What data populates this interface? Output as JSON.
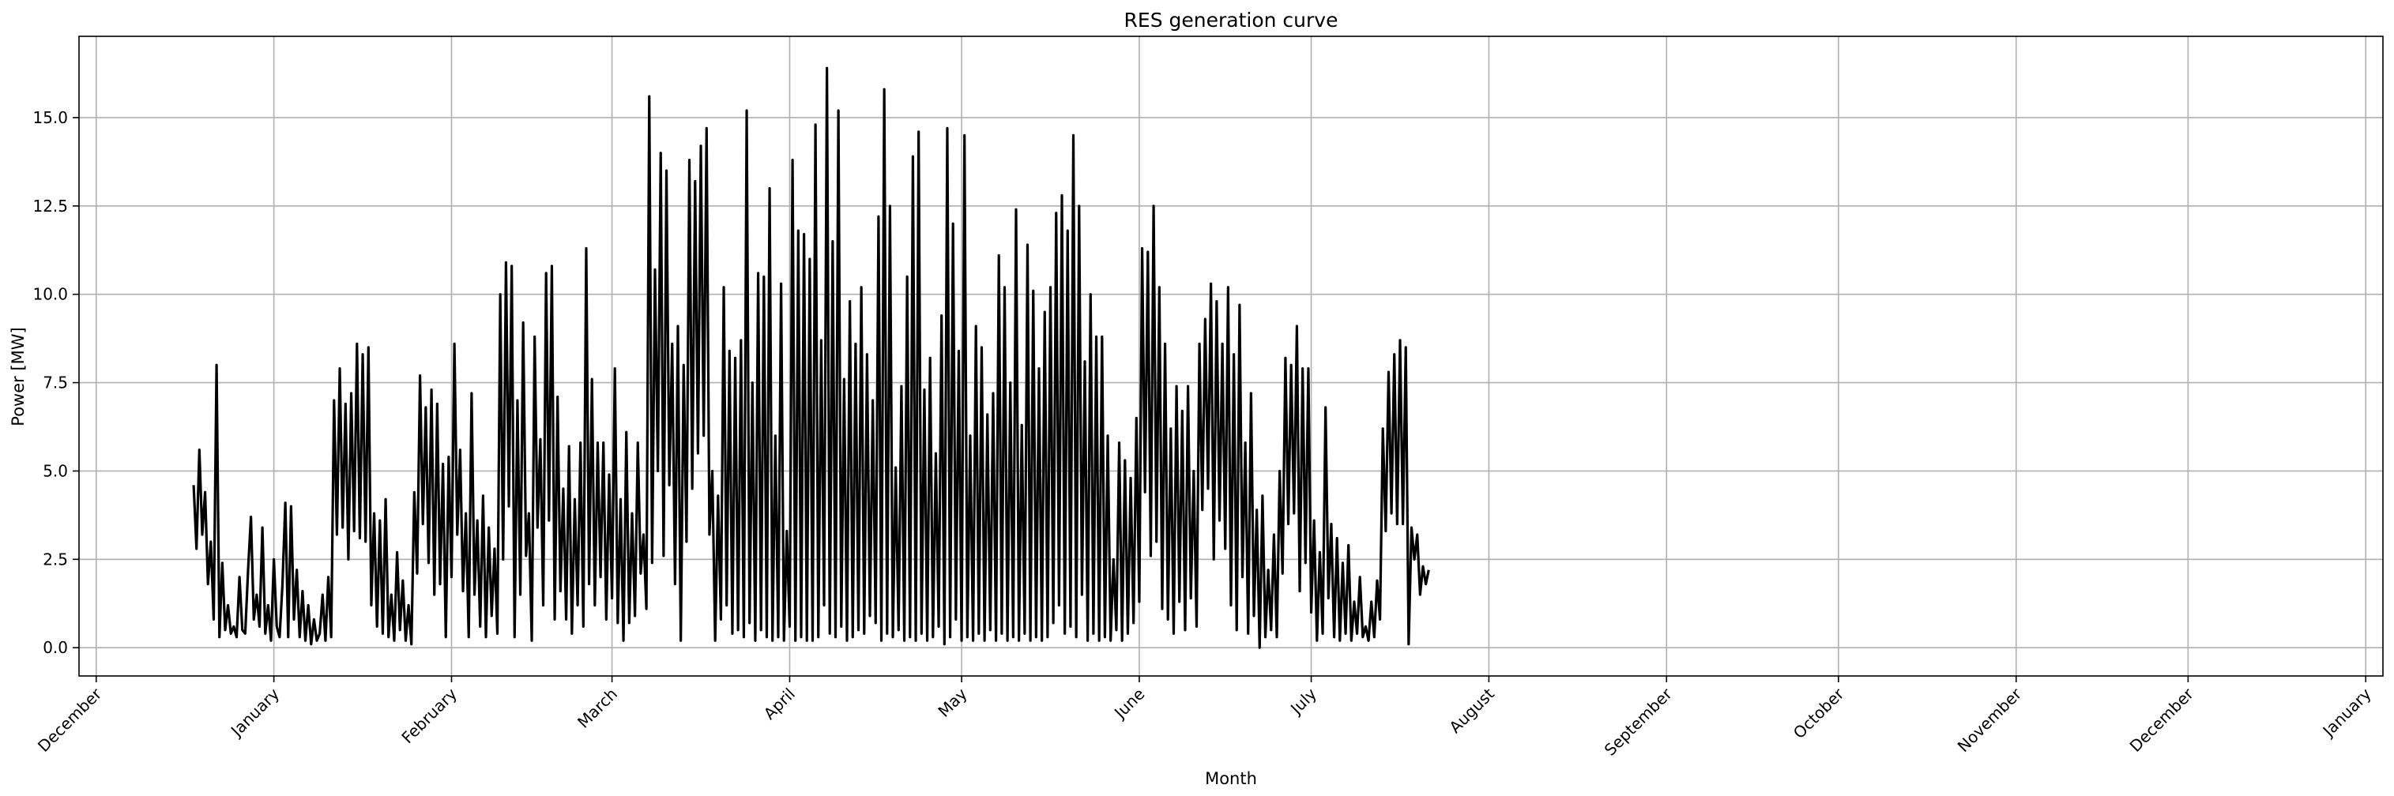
{
  "chart_data": {
    "type": "line",
    "title": "RES generation curve",
    "xlabel": "Month",
    "ylabel": "Power [MW]",
    "x_axis_type": "date",
    "xlim": [
      "2021-11-28",
      "2023-01-04"
    ],
    "ylim": [
      -0.8,
      17.3
    ],
    "grid": true,
    "line_color": "#000000",
    "x_ticks": [
      {
        "date": "2021-12-01",
        "label": "December"
      },
      {
        "date": "2022-01-01",
        "label": "January"
      },
      {
        "date": "2022-02-01",
        "label": "February"
      },
      {
        "date": "2022-03-01",
        "label": "March"
      },
      {
        "date": "2022-04-01",
        "label": "April"
      },
      {
        "date": "2022-05-01",
        "label": "May"
      },
      {
        "date": "2022-06-01",
        "label": "June"
      },
      {
        "date": "2022-07-01",
        "label": "July"
      },
      {
        "date": "2022-08-01",
        "label": "August"
      },
      {
        "date": "2022-09-01",
        "label": "September"
      },
      {
        "date": "2022-10-01",
        "label": "October"
      },
      {
        "date": "2022-11-01",
        "label": "November"
      },
      {
        "date": "2022-12-01",
        "label": "December"
      },
      {
        "date": "2023-01-01",
        "label": "January"
      }
    ],
    "y_ticks": [
      {
        "value": 0,
        "label": "0.0"
      },
      {
        "value": 2.5,
        "label": "2.5"
      },
      {
        "value": 5,
        "label": "5.0"
      },
      {
        "value": 7.5,
        "label": "7.5"
      },
      {
        "value": 10,
        "label": "10.0"
      },
      {
        "value": 12.5,
        "label": "12.5"
      },
      {
        "value": 15,
        "label": "15.0"
      }
    ],
    "series": [
      {
        "start": "2021-12-18",
        "step_hours": 12,
        "values": [
          4.6,
          2.8,
          5.6,
          3.2,
          4.4,
          1.8,
          3.0,
          0.8,
          8.0,
          0.3,
          2.4,
          0.5,
          1.2,
          0.4,
          0.6,
          0.3,
          2.0,
          0.5,
          0.4,
          2.2,
          3.7,
          0.8,
          1.5,
          0.6,
          3.4,
          0.4,
          1.2,
          0.2,
          2.5,
          0.6,
          0.3,
          1.8,
          4.1,
          0.3,
          4.0,
          0.8,
          2.2,
          0.3,
          1.6,
          0.2,
          1.2,
          0.1,
          0.8,
          0.2,
          0.4,
          1.5,
          0.2,
          2.0,
          0.3,
          7.0,
          3.2,
          7.9,
          3.4,
          6.9,
          2.5,
          7.2,
          3.3,
          8.6,
          3.1,
          8.3,
          3.0,
          8.5,
          1.2,
          3.8,
          0.6,
          3.6,
          0.4,
          4.2,
          0.3,
          1.5,
          0.2,
          2.7,
          0.5,
          1.9,
          0.2,
          1.2,
          0.1,
          4.4,
          2.1,
          7.7,
          3.5,
          6.8,
          2.4,
          7.3,
          1.5,
          6.9,
          1.8,
          5.2,
          0.3,
          5.4,
          2.0,
          8.6,
          3.2,
          5.6,
          1.6,
          3.8,
          0.3,
          7.2,
          1.5,
          3.6,
          0.6,
          4.3,
          0.3,
          3.4,
          0.9,
          2.8,
          0.4,
          10.0,
          2.5,
          10.9,
          4.0,
          10.8,
          0.3,
          7.0,
          1.5,
          9.2,
          2.6,
          3.8,
          0.2,
          8.8,
          3.4,
          5.9,
          1.2,
          10.6,
          3.6,
          10.8,
          0.8,
          7.1,
          1.6,
          4.5,
          0.8,
          5.7,
          0.4,
          4.2,
          1.2,
          5.8,
          0.6,
          11.3,
          1.8,
          7.6,
          1.2,
          5.8,
          2.0,
          5.8,
          0.8,
          4.9,
          1.4,
          7.9,
          0.7,
          4.2,
          0.2,
          6.1,
          0.7,
          3.8,
          0.9,
          5.8,
          2.1,
          3.2,
          1.1,
          15.6,
          2.4,
          10.7,
          5.0,
          14.0,
          2.6,
          13.5,
          4.6,
          8.6,
          1.8,
          9.1,
          0.2,
          8.0,
          3.0,
          13.8,
          4.5,
          13.2,
          5.5,
          14.2,
          6.0,
          14.7,
          3.2,
          5.0,
          0.2,
          4.3,
          0.8,
          10.2,
          1.2,
          8.4,
          0.4,
          8.2,
          0.5,
          8.7,
          0.3,
          15.2,
          0.7,
          7.5,
          0.2,
          10.6,
          0.5,
          10.5,
          0.3,
          13.0,
          0.2,
          6.0,
          0.3,
          10.3,
          0.2,
          3.3,
          0.6,
          13.8,
          0.2,
          11.8,
          0.3,
          11.7,
          0.2,
          11.0,
          0.2,
          14.8,
          0.3,
          8.7,
          1.2,
          16.4,
          0.4,
          11.5,
          0.3,
          15.2,
          0.6,
          7.6,
          0.2,
          9.8,
          0.3,
          8.6,
          0.5,
          10.2,
          0.4,
          8.3,
          0.9,
          7.0,
          0.7,
          12.2,
          0.2,
          15.8,
          0.4,
          12.5,
          0.3,
          5.1,
          0.5,
          7.4,
          0.2,
          10.5,
          0.3,
          13.9,
          0.2,
          14.6,
          0.4,
          7.3,
          0.2,
          8.2,
          0.3,
          5.5,
          0.6,
          9.4,
          0.1,
          14.7,
          0.3,
          12.0,
          0.8,
          8.4,
          0.2,
          14.5,
          0.3,
          6.0,
          0.2,
          9.1,
          0.4,
          8.5,
          0.2,
          6.6,
          0.5,
          7.2,
          0.2,
          11.1,
          0.4,
          10.2,
          0.2,
          7.5,
          0.3,
          12.4,
          0.2,
          6.3,
          0.4,
          11.4,
          0.2,
          10.1,
          0.3,
          7.9,
          0.2,
          9.5,
          0.3,
          10.2,
          0.7,
          12.3,
          1.2,
          12.8,
          0.4,
          11.8,
          0.6,
          14.5,
          0.3,
          12.5,
          1.5,
          8.1,
          0.2,
          10.0,
          0.4,
          8.8,
          0.2,
          8.8,
          0.3,
          6.0,
          0.2,
          2.5,
          0.5,
          5.8,
          0.2,
          5.3,
          0.4,
          4.8,
          0.7,
          6.5,
          1.3,
          11.3,
          4.4,
          11.2,
          2.6,
          12.5,
          3.0,
          10.2,
          1.1,
          8.6,
          0.8,
          6.2,
          0.4,
          7.4,
          1.3,
          6.7,
          0.5,
          7.4,
          1.4,
          5.0,
          0.6,
          8.6,
          3.9,
          9.3,
          4.5,
          10.3,
          2.5,
          9.8,
          3.6,
          8.6,
          2.8,
          10.2,
          1.2,
          8.3,
          0.5,
          9.7,
          2.0,
          5.8,
          0.4,
          7.2,
          0.9,
          3.9,
          0.0,
          4.3,
          0.3,
          2.2,
          0.5,
          3.2,
          0.3,
          5.0,
          2.1,
          8.2,
          3.5,
          8.0,
          3.8,
          9.1,
          1.6,
          7.9,
          2.4,
          7.9,
          1.0,
          3.6,
          0.2,
          2.7,
          0.4,
          6.8,
          1.4,
          3.5,
          0.3,
          3.1,
          0.2,
          2.4,
          0.4,
          2.9,
          0.2,
          1.3,
          0.4,
          2.0,
          0.3,
          0.6,
          0.2,
          1.3,
          0.3,
          1.9,
          0.8,
          6.2,
          3.3,
          7.8,
          3.8,
          8.3,
          3.5,
          8.7,
          3.5,
          8.5,
          0.1,
          3.4,
          2.5,
          3.2,
          1.5,
          2.3,
          1.8,
          2.2
        ]
      }
    ]
  }
}
